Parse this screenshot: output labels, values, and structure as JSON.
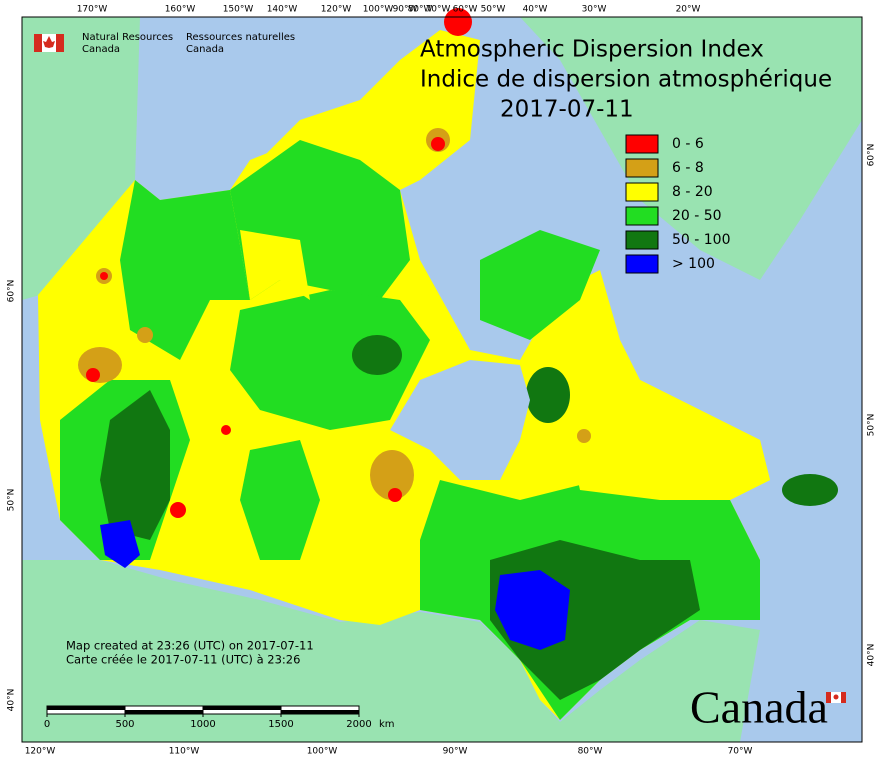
{
  "header": {
    "agency_en": [
      "Natural Resources",
      "Canada"
    ],
    "agency_fr": [
      "Ressources naturelles",
      "Canada"
    ]
  },
  "title": {
    "line1": "Atmospheric Dispersion Index",
    "line2": "Indice de dispersion atmosphérique",
    "date": "2017-07-11"
  },
  "legend": [
    {
      "label": "0 - 6",
      "color": "#ff0000"
    },
    {
      "label": "6 - 8",
      "color": "#d4a017"
    },
    {
      "label": "8 - 20",
      "color": "#ffff00"
    },
    {
      "label": "20 - 50",
      "color": "#22dd22"
    },
    {
      "label": "50 - 100",
      "color": "#117711"
    },
    {
      "label": "> 100",
      "color": "#0000ff"
    }
  ],
  "graticule": {
    "top": [
      "170°W",
      "160°W",
      "150°W",
      "140°W",
      "120°W",
      "100°W",
      "90°W",
      "80°W",
      "70°W",
      "60°W",
      "50°W",
      "40°W",
      "30°W",
      "20°W"
    ],
    "bottom": [
      "120°W",
      "110°W",
      "100°W",
      "90°W",
      "80°W",
      "70°W"
    ],
    "left": [
      "60°N",
      "50°N",
      "40°N"
    ],
    "right": [
      "60°N",
      "50°N",
      "40°N"
    ]
  },
  "credits": [
    "Map created at 23:26 (UTC) on 2017-07-11",
    "Carte créée le 2017-07-11 (UTC) à 23:26"
  ],
  "scale_bar": {
    "ticks": [
      "0",
      "500",
      "1000",
      "1500",
      "2000"
    ],
    "unit": "km"
  },
  "wordmark": "Canada"
}
